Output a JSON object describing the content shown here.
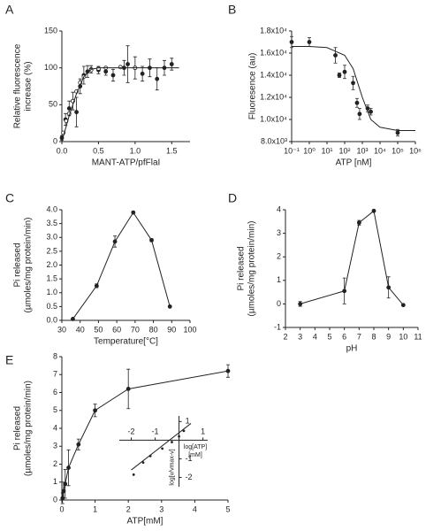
{
  "chart_data": [
    {
      "type": "scatter",
      "panel": "A",
      "xlabel": "MANT-ATP/pfFlaI",
      "ylabel": [
        "Relative fluorescence",
        "increase (%)"
      ],
      "xlim": [
        0,
        1.75
      ],
      "xticks": [
        {
          "value": 0,
          "label": "0.0"
        },
        {
          "value": 0.5,
          "label": "0.5"
        },
        {
          "value": 1,
          "label": "1.0"
        },
        {
          "value": 1.5,
          "label": "1.5"
        }
      ],
      "ylim": [
        0,
        150
      ],
      "yticks": [
        0,
        50,
        100,
        150
      ],
      "color": "#222",
      "series": [
        {
          "marker": "filled",
          "line": false,
          "x": [
            0.0,
            0.05,
            0.1,
            0.15,
            0.2,
            0.25,
            0.3,
            0.35,
            0.4,
            0.5,
            0.6,
            0.7,
            0.85,
            0.9,
            1.0,
            1.1,
            1.2,
            1.3,
            1.4,
            1.5
          ],
          "values": [
            5,
            30,
            45,
            55,
            40,
            75,
            90,
            95,
            98,
            97,
            95,
            90,
            100,
            105,
            100,
            92,
            100,
            85,
            100,
            105
          ],
          "errors": [
            3,
            8,
            10,
            12,
            20,
            10,
            12,
            8,
            5,
            5,
            5,
            8,
            10,
            25,
            15,
            10,
            12,
            15,
            10,
            8
          ]
        },
        {
          "marker": "open",
          "line": false,
          "x": [
            0.02,
            0.06,
            0.1,
            0.15,
            0.2,
            0.25,
            0.3,
            0.4,
            0.5,
            0.6,
            0.8,
            1.0
          ],
          "values": [
            12,
            28,
            38,
            55,
            68,
            80,
            88,
            97,
            99,
            100,
            101,
            100
          ]
        },
        {
          "marker": "none",
          "line": true,
          "x": [
            0,
            0.1,
            0.2,
            0.3,
            0.4,
            0.5,
            1.6
          ],
          "values": [
            0,
            35,
            65,
            88,
            98,
            100,
            100
          ]
        }
      ]
    },
    {
      "type": "scatter",
      "panel": "B",
      "xlabel": "ATP [nM]",
      "ylabel": [
        "Fluoresence (au)"
      ],
      "xscale": "log",
      "xlim": [
        0.1,
        1000000
      ],
      "xticks": [
        {
          "value": 0.1,
          "label": "10⁻¹"
        },
        {
          "value": 1,
          "label": "10⁰"
        },
        {
          "value": 10,
          "label": "10¹"
        },
        {
          "value": 100,
          "label": "10²"
        },
        {
          "value": 1000,
          "label": "10³"
        },
        {
          "value": 10000,
          "label": "10⁴"
        },
        {
          "value": 100000,
          "label": "10⁵"
        },
        {
          "value": 1000000,
          "label": "10⁶"
        }
      ],
      "ylim": [
        8000,
        18000
      ],
      "yticks": [
        {
          "value": 8000,
          "label": "8.0x10³"
        },
        {
          "value": 10000,
          "label": "1.0x10⁴"
        },
        {
          "value": 12000,
          "label": "1.2x10⁴"
        },
        {
          "value": 14000,
          "label": "1.4x10⁴"
        },
        {
          "value": 16000,
          "label": "1.6x10⁴"
        },
        {
          "value": 18000,
          "label": "1.8x10⁴"
        }
      ],
      "color": "#222",
      "series": [
        {
          "marker": "filled",
          "line": false,
          "x": [
            0.1,
            1,
            30,
            50,
            100,
            300,
            500,
            700,
            2000,
            3000,
            100000
          ],
          "values": [
            17000,
            17000,
            15800,
            14000,
            14300,
            13300,
            11500,
            10500,
            11000,
            10700,
            8800
          ],
          "errors": [
            500,
            400,
            700,
            200,
            600,
            600,
            400,
            500,
            300,
            300,
            300
          ]
        },
        {
          "marker": "none",
          "line": true,
          "x": [
            0.1,
            1,
            10,
            100,
            300,
            1000,
            3000,
            10000,
            100000,
            1000000
          ],
          "values": [
            16600,
            16600,
            16500,
            15800,
            14600,
            12000,
            10000,
            9300,
            9000,
            9000
          ]
        }
      ]
    },
    {
      "type": "line",
      "panel": "C",
      "xlabel": "Temperature[°C]",
      "ylabel": [
        "Pi released",
        "(µmoles/mg protein/min)"
      ],
      "xlim": [
        30,
        100
      ],
      "xticks": [
        30,
        40,
        50,
        60,
        70,
        80,
        90,
        100
      ],
      "ylim": [
        0,
        4
      ],
      "yticks": [
        {
          "value": 0,
          "label": "0.0"
        },
        {
          "value": 0.5,
          "label": "0.5"
        },
        {
          "value": 1,
          "label": "1.0"
        },
        {
          "value": 1.5,
          "label": "1.5"
        },
        {
          "value": 2,
          "label": "2.0"
        },
        {
          "value": 2.5,
          "label": "2.5"
        },
        {
          "value": 3,
          "label": "3.0"
        },
        {
          "value": 3.5,
          "label": "3.5"
        },
        {
          "value": 4,
          "label": "4.0"
        }
      ],
      "color": "#222",
      "series": [
        {
          "marker": "filled",
          "line": true,
          "x": [
            36,
            49,
            59,
            69,
            79,
            89
          ],
          "values": [
            0.05,
            1.25,
            2.85,
            3.9,
            2.9,
            0.5
          ],
          "errors": [
            0,
            0.07,
            0.2,
            0,
            0.05,
            0
          ]
        }
      ]
    },
    {
      "type": "line",
      "panel": "D",
      "xlabel": "pH",
      "ylabel": [
        "Pi released",
        "(µmoles/mg protein/min)"
      ],
      "xlim": [
        2,
        11
      ],
      "xticks": [
        2,
        3,
        4,
        5,
        6,
        7,
        8,
        9,
        10,
        11
      ],
      "ylim": [
        -1,
        4
      ],
      "yticks": [
        -1,
        0,
        1,
        2,
        3,
        4
      ],
      "color": "#222",
      "series": [
        {
          "marker": "filled",
          "line": true,
          "x": [
            3,
            6,
            7,
            8,
            9,
            10
          ],
          "values": [
            0,
            0.55,
            3.45,
            3.95,
            0.7,
            -0.05
          ],
          "errors": [
            0.1,
            0.55,
            0.1,
            0.05,
            0.45,
            0
          ]
        }
      ]
    },
    {
      "type": "line",
      "panel": "E",
      "xlabel": "ATP[mM]",
      "ylabel": [
        "Pi released",
        "(µmoles/mg protein/min)"
      ],
      "xlim": [
        0,
        5
      ],
      "xticks": [
        0,
        1,
        2,
        3,
        4,
        5
      ],
      "ylim": [
        0,
        8
      ],
      "yticks": [
        0,
        1,
        2,
        3,
        4,
        5,
        6,
        7,
        8
      ],
      "color": "#222",
      "series": [
        {
          "marker": "filled",
          "line": true,
          "x": [
            0.02,
            0.05,
            0.1,
            0.2,
            0.5,
            1,
            2,
            5
          ],
          "values": [
            0.1,
            0.5,
            0.9,
            1.8,
            3.1,
            5,
            6.2,
            7.2
          ],
          "errors": [
            0.3,
            0.5,
            0.8,
            1,
            0.3,
            0.35,
            1.1,
            0.35
          ]
        }
      ]
    },
    {
      "type": "scatter",
      "axes": "crossing",
      "xlabel": [
        "log[ATP]",
        "[mM]"
      ],
      "ylabel": [
        "log[v/vmax-v]"
      ],
      "xlim": [
        -2.5,
        1.2
      ],
      "xticks": [
        -2,
        -1,
        1
      ],
      "ylim": [
        -2.5,
        1.3
      ],
      "yticks": [
        1,
        -1,
        -2
      ],
      "color": "#222",
      "series": [
        {
          "marker": "small",
          "line": false,
          "x": [
            -1.9,
            -1.5,
            -1.2,
            -0.7,
            -0.3,
            0,
            0.2
          ],
          "values": [
            -1.85,
            -1.2,
            -0.85,
            -0.45,
            -0.1,
            0.2,
            0.5
          ]
        },
        {
          "marker": "none",
          "line": true,
          "x": [
            -2,
            0.5
          ],
          "values": [
            -1.6,
            0.9
          ]
        }
      ]
    }
  ]
}
